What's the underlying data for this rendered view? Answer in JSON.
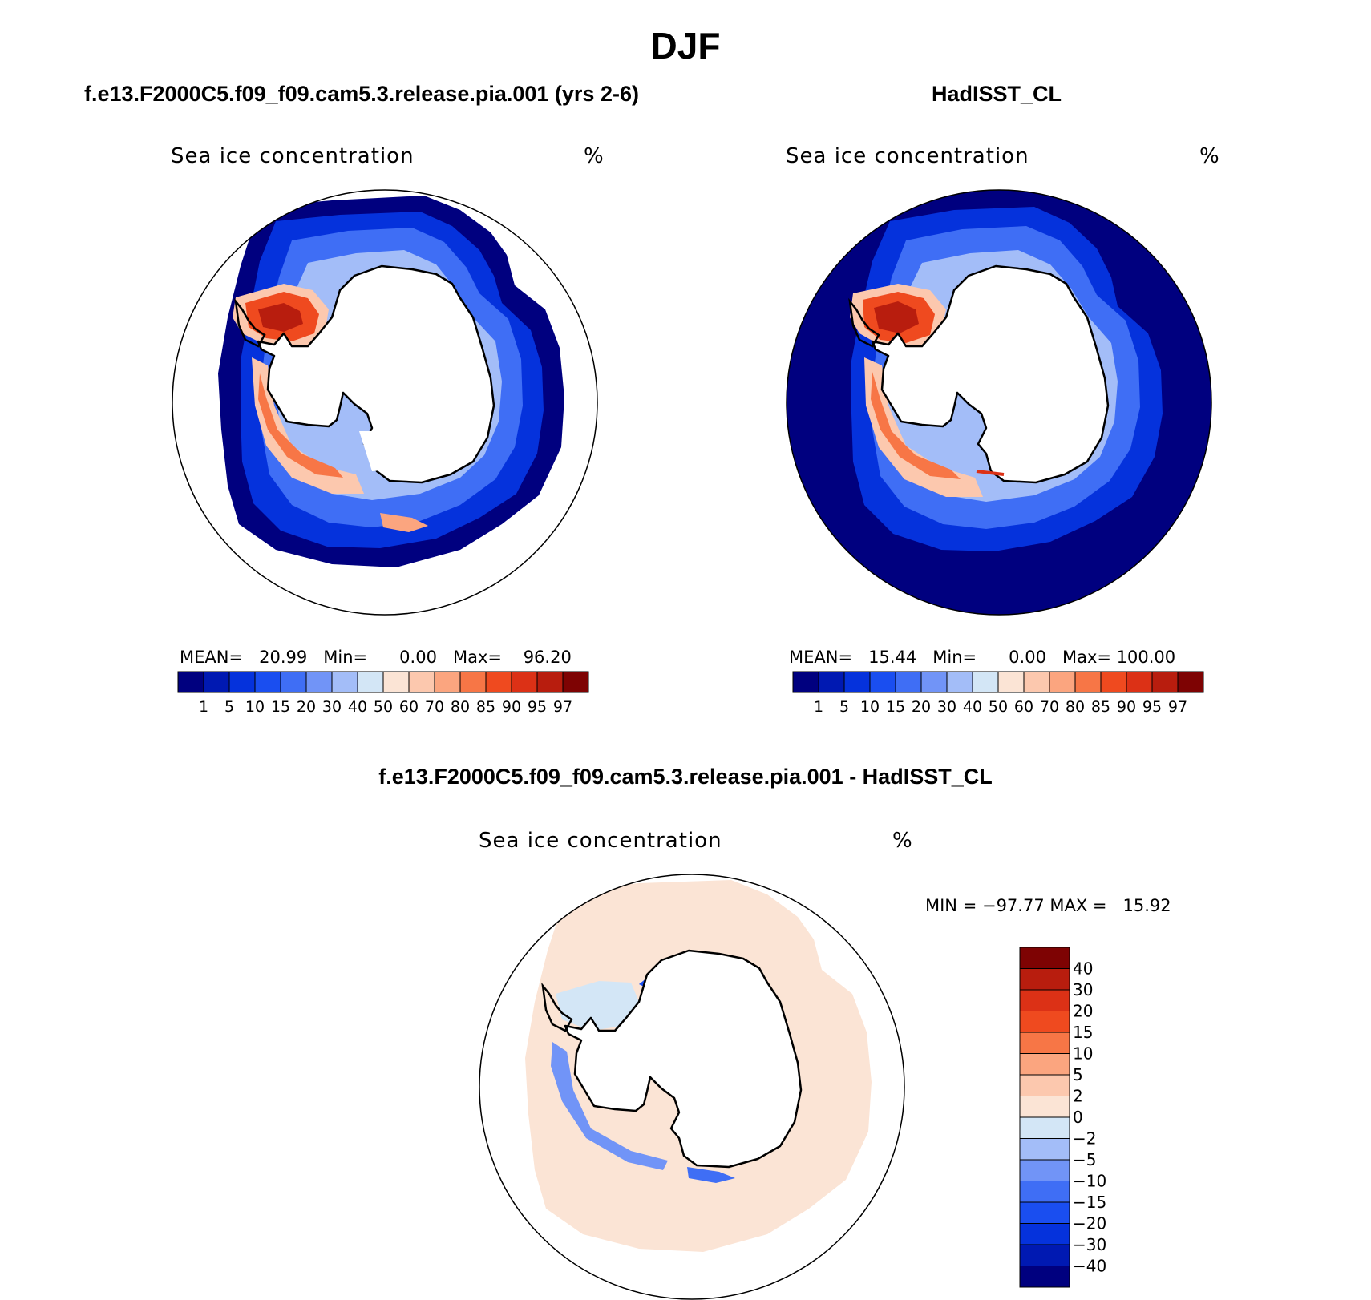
{
  "title": "DJF",
  "panels": [
    {
      "id": "model",
      "case_title": "f.e13.F2000C5.f09_f09.cam5.3.release.pia.001 (yrs 2-6)",
      "variable": "Sea ice concentration",
      "units": "%",
      "stats": {
        "mean_label": "MEAN=",
        "mean": "20.99",
        "min_label": "Min=",
        "min": "0.00",
        "max_label": "Max=",
        "max": "96.20"
      }
    },
    {
      "id": "obs",
      "case_title": "HadISST_CL",
      "variable": "Sea ice concentration",
      "units": "%",
      "stats": {
        "mean_label": "MEAN=",
        "mean": "15.44",
        "min_label": "Min=",
        "min": "0.00",
        "max_label": "Max=",
        "max": "100.00"
      }
    },
    {
      "id": "diff",
      "case_title": "f.e13.F2000C5.f09_f09.cam5.3.release.pia.001 - HadISST_CL",
      "variable": "Sea ice concentration",
      "units": "%",
      "stats": {
        "text": "MIN = −97.77 MAX =   15.92"
      }
    }
  ],
  "chart_data": [
    {
      "type": "heatmap",
      "projection": "south-polar-stereographic",
      "title": "Sea ice concentration",
      "units": "%",
      "colorbar_levels": [
        1,
        5,
        10,
        15,
        20,
        30,
        40,
        50,
        60,
        70,
        80,
        85,
        90,
        95,
        97
      ],
      "colorbar_tick_labels": [
        "1",
        "5",
        "10",
        "15",
        "20",
        "30",
        "40",
        "50",
        "60",
        "70",
        "80",
        "85",
        "90",
        "95",
        "97"
      ],
      "colors": [
        "#00007f",
        "#0019b2",
        "#0532dc",
        "#1a4ef0",
        "#3f6ef5",
        "#7194f7",
        "#a3bdf8",
        "#d3e6f6",
        "#fbe4d5",
        "#fcc8ae",
        "#fba57f",
        "#f77646",
        "#ef4a1f",
        "#dc3116",
        "#b81d0e",
        "#7e0303"
      ],
      "mean": 20.99,
      "min": 0.0,
      "max": 96.2
    },
    {
      "type": "heatmap",
      "projection": "south-polar-stereographic",
      "title": "Sea ice concentration",
      "units": "%",
      "colorbar_levels": [
        1,
        5,
        10,
        15,
        20,
        30,
        40,
        50,
        60,
        70,
        80,
        85,
        90,
        95,
        97
      ],
      "colorbar_tick_labels": [
        "1",
        "5",
        "10",
        "15",
        "20",
        "30",
        "40",
        "50",
        "60",
        "70",
        "80",
        "85",
        "90",
        "95",
        "97"
      ],
      "colors": [
        "#00007f",
        "#0019b2",
        "#0532dc",
        "#1a4ef0",
        "#3f6ef5",
        "#7194f7",
        "#a3bdf8",
        "#d3e6f6",
        "#fbe4d5",
        "#fcc8ae",
        "#fba57f",
        "#f77646",
        "#ef4a1f",
        "#dc3116",
        "#b81d0e",
        "#7e0303"
      ],
      "mean": 15.44,
      "min": 0.0,
      "max": 100.0
    },
    {
      "type": "heatmap",
      "projection": "south-polar-stereographic",
      "title": "Sea ice concentration",
      "units": "%",
      "colorbar_levels": [
        -40,
        -30,
        -20,
        -15,
        -10,
        -5,
        -2,
        0,
        2,
        5,
        10,
        15,
        20,
        30,
        40
      ],
      "colorbar_tick_labels": [
        "−40",
        "−30",
        "−20",
        "−15",
        "−10",
        "−5",
        "−2",
        "0",
        "2",
        "5",
        "10",
        "15",
        "20",
        "30",
        "40"
      ],
      "colors": [
        "#00007f",
        "#0019b2",
        "#0532dc",
        "#1a4ef0",
        "#3f6ef5",
        "#7194f7",
        "#a3bdf8",
        "#d3e6f6",
        "#fbe4d5",
        "#fcc8ae",
        "#fba57f",
        "#f77646",
        "#ef4a1f",
        "#dc3116",
        "#b81d0e",
        "#7e0303"
      ],
      "min": -97.77,
      "max": 15.92
    }
  ]
}
